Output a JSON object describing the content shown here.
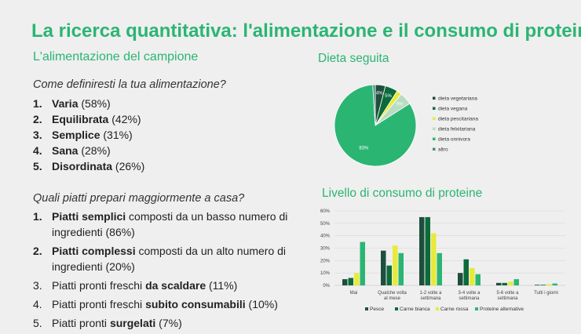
{
  "title": "La ricerca quantitativa: l'alimentazione e il consumo di proteine",
  "subtitle": "L'alimentazione del campione",
  "question1": "Come definiresti la tua alimentazione?",
  "answers1": [
    {
      "num": "1.",
      "bold": "Varia",
      "rest": " (58%)"
    },
    {
      "num": "2.",
      "bold": "Equilibrata",
      "rest": " (42%)"
    },
    {
      "num": "3.",
      "bold": "Semplice",
      "rest": " (31%)"
    },
    {
      "num": "4.",
      "bold": "Sana",
      "rest": " (28%)"
    },
    {
      "num": "5.",
      "bold": "Disordinata",
      "rest": " (26%)"
    }
  ],
  "question2": "Quali piatti prepari maggiormente a casa?",
  "answers2": [
    {
      "num": "1.",
      "pre": "",
      "bold": "Piatti semplici",
      "rest": " composti da un basso numero di ingredienti (86%)"
    },
    {
      "num": "2.",
      "pre": "",
      "bold": "Piatti complessi",
      "rest": " composti da un alto numero di ingredienti (20%)"
    },
    {
      "num": "3.",
      "pre": "Piatti pronti freschi ",
      "bold": "da scaldare",
      "rest": " (11%)"
    },
    {
      "num": "4.",
      "pre": "Piatti pronti freschi ",
      "bold": "subito consumabili",
      "rest": " (10%)"
    },
    {
      "num": "5.",
      "pre": "Piatti pronti ",
      "bold": "surgelati",
      "rest": " (7%)"
    }
  ],
  "chart_data": [
    {
      "type": "pie",
      "title": "Dieta seguita",
      "slices": [
        {
          "label": "dieta vegetariana",
          "value": 4,
          "display": "4%",
          "color": "#1f4e3d"
        },
        {
          "label": "dieta vegana",
          "value": 5,
          "display": "5%",
          "color": "#0b6b3a"
        },
        {
          "label": "dieta pescitariana",
          "value": 2,
          "display": "",
          "color": "#e8ea3a"
        },
        {
          "label": "dieta felxitariana",
          "value": 5,
          "display": "5%",
          "color": "#b9dcc2"
        },
        {
          "label": "dieta onnivora",
          "value": 83,
          "display": "83%",
          "color": "#2bb573"
        },
        {
          "label": "altro",
          "value": 1,
          "display": "",
          "color": "#4c8c80"
        }
      ]
    },
    {
      "type": "bar",
      "title": "Livello di consumo di proteine",
      "categories": [
        [
          "Mai"
        ],
        [
          "Qualche volta",
          "al mese"
        ],
        [
          "1-2 volte a",
          "settimana"
        ],
        [
          "3-4 volte a",
          "settimana"
        ],
        [
          "5-6 volte a",
          "settimana"
        ],
        [
          "Tutti i giorni"
        ]
      ],
      "series": [
        {
          "name": "Pesce",
          "color": "#1f4e3d",
          "values": [
            5,
            28,
            55,
            10,
            2,
            0.5
          ]
        },
        {
          "name": "Carne bianca",
          "color": "#0b6b3a",
          "values": [
            6,
            16,
            55,
            21,
            2,
            0.5
          ]
        },
        {
          "name": "Carne rossa",
          "color": "#e8ea3a",
          "values": [
            10,
            32,
            42,
            14,
            3,
            1
          ]
        },
        {
          "name": "Proteine alternative",
          "color": "#2bb573",
          "values": [
            35,
            26,
            26,
            9,
            5,
            1.5
          ]
        }
      ],
      "ylim": [
        0,
        60
      ],
      "yticks": [
        "0%",
        "10%",
        "20%",
        "30%",
        "40%",
        "50%",
        "60%"
      ],
      "grid": true,
      "legend": "bottom"
    }
  ]
}
